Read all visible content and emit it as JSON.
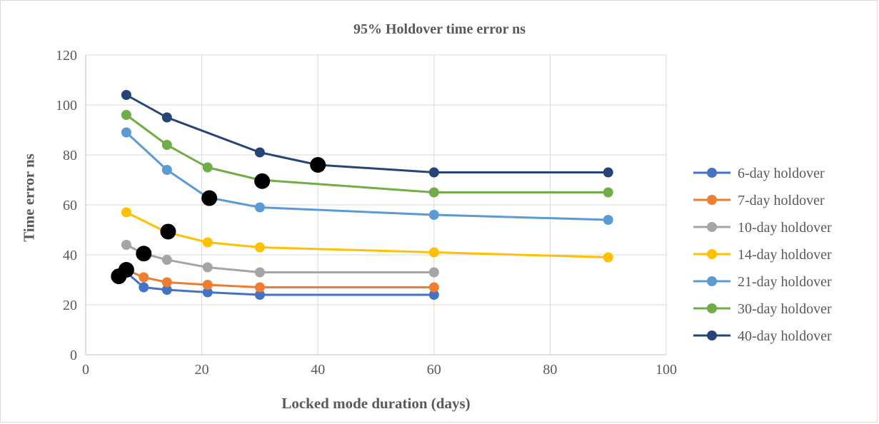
{
  "chart_data": {
    "type": "line",
    "title": "95% Holdover time error ns",
    "xlabel": "Locked mode duration (days)",
    "ylabel": "Time error ns",
    "xlim": [
      0,
      100
    ],
    "ylim": [
      0,
      120
    ],
    "xticks": [
      0,
      20,
      40,
      60,
      80,
      100
    ],
    "yticks": [
      0,
      20,
      40,
      60,
      80,
      100,
      120
    ],
    "grid": true,
    "legend_position": "right",
    "series": [
      {
        "name": "6-day holdover",
        "color": "#4472c4",
        "x": [
          6,
          7,
          10,
          14,
          21,
          30,
          60
        ],
        "y": [
          31,
          33,
          27,
          26,
          25,
          24,
          24
        ]
      },
      {
        "name": "7-day holdover",
        "color": "#ed7d31",
        "x": [
          7,
          10,
          14,
          21,
          30,
          60
        ],
        "y": [
          34,
          31,
          29,
          28,
          27,
          27
        ]
      },
      {
        "name": "10-day holdover",
        "color": "#a5a5a5",
        "x": [
          7,
          10,
          14,
          21,
          30,
          60
        ],
        "y": [
          44,
          40.5,
          38,
          35,
          33,
          33
        ]
      },
      {
        "name": "14-day holdover",
        "color": "#ffc000",
        "x": [
          7,
          14,
          21,
          30,
          60,
          90
        ],
        "y": [
          57,
          49,
          45,
          43,
          41,
          39
        ]
      },
      {
        "name": "21-day holdover",
        "color": "#5b9bd5",
        "x": [
          7,
          14,
          21,
          30,
          60,
          90
        ],
        "y": [
          89,
          74,
          63,
          59,
          56,
          54
        ]
      },
      {
        "name": "30-day holdover",
        "color": "#70ad47",
        "x": [
          7,
          14,
          21,
          30,
          60,
          90
        ],
        "y": [
          96,
          84,
          75,
          70,
          65,
          65
        ]
      },
      {
        "name": "40-day holdover",
        "color": "#264478",
        "x": [
          7,
          14,
          30,
          40,
          60,
          90
        ],
        "y": [
          104,
          95,
          81,
          76,
          73,
          73
        ]
      }
    ],
    "highlight_points": {
      "color": "#000000",
      "x": [
        5.7,
        7,
        10,
        14.2,
        21.3,
        30.4,
        40
      ],
      "y": [
        31.4,
        34,
        40.5,
        49.3,
        62.7,
        69.5,
        76
      ]
    }
  }
}
